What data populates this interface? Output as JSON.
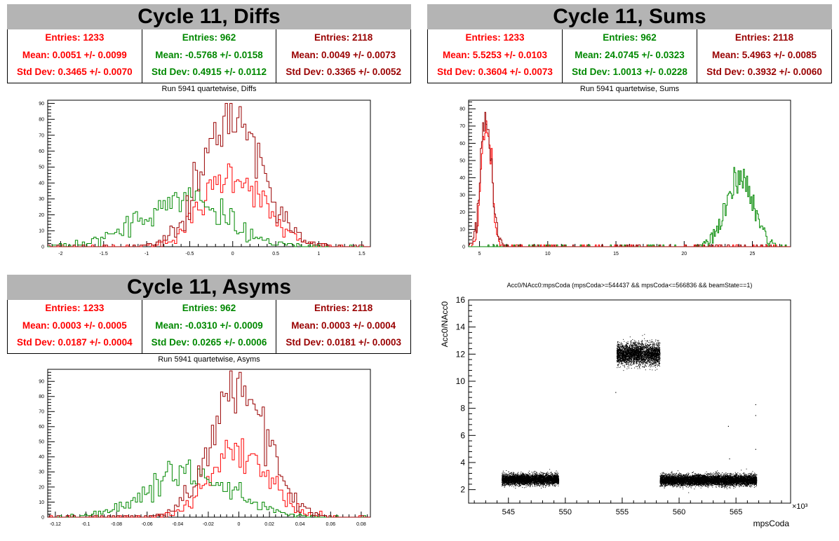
{
  "colors": {
    "red": "#ff0000",
    "green": "#008800",
    "darkred": "#990000",
    "title_bg": "#b4b4b4"
  },
  "panels": {
    "diffs": {
      "title": "Cycle 11, Diffs",
      "subtitle": "Run 5941 quartetwise, Diffs",
      "stats": [
        {
          "entries": "Entries: 1233",
          "mean": "Mean: 0.0051 +/- 0.0099",
          "std": "Std Dev: 0.3465 +/- 0.0070"
        },
        {
          "entries": "Entries: 962",
          "mean": "Mean: -0.5768 +/- 0.0158",
          "std": "Std Dev: 0.4915 +/- 0.0112"
        },
        {
          "entries": "Entries: 2118",
          "mean": "Mean: 0.0049 +/- 0.0073",
          "std": "Std Dev: 0.3365 +/- 0.0052"
        }
      ]
    },
    "sums": {
      "title": "Cycle 11, Sums",
      "subtitle": "Run 5941 quartetwise, Sums",
      "stats": [
        {
          "entries": "Entries: 1233",
          "mean": "Mean: 5.5253 +/- 0.0103",
          "std": "Std Dev: 0.3604 +/- 0.0073"
        },
        {
          "entries": "Entries: 962",
          "mean": "Mean: 24.0745 +/- 0.0323",
          "std": "Std Dev: 1.0013 +/- 0.0228"
        },
        {
          "entries": "Entries: 2118",
          "mean": "Mean: 5.4963 +/- 0.0085",
          "std": "Std Dev: 0.3932 +/- 0.0060"
        }
      ]
    },
    "asyms": {
      "title": "Cycle 11, Asyms",
      "subtitle": "Run 5941 quartetwise, Asyms",
      "stats": [
        {
          "entries": "Entries: 1233",
          "mean": "Mean: 0.0003 +/- 0.0005",
          "std": "Std Dev: 0.0187 +/- 0.0004"
        },
        {
          "entries": "Entries: 962",
          "mean": "Mean: -0.0310 +/- 0.0009",
          "std": "Std Dev: 0.0265 +/- 0.0006"
        },
        {
          "entries": "Entries: 2118",
          "mean": "Mean: 0.0003 +/- 0.0004",
          "std": "Std Dev: 0.0181 +/- 0.0003"
        }
      ]
    },
    "scatter": {
      "title": "Acc0/NAcc0:mpsCoda (mpsCoda>=544437 && mpsCoda<=566836 && beamState==1)"
    }
  },
  "chart_data": [
    {
      "type": "histogram",
      "title": "Run 5941 quartetwise, Diffs",
      "xlim": [
        -2.15,
        1.6
      ],
      "ylim": [
        0,
        92
      ],
      "xticks": [
        -2,
        -1.5,
        -1,
        -0.5,
        0,
        0.5,
        1,
        1.5
      ],
      "yticks": [
        0,
        10,
        20,
        30,
        40,
        50,
        60,
        70,
        80,
        90
      ],
      "series": [
        {
          "color": "red",
          "gaussian": {
            "entries": 1233,
            "mean": 0.0051,
            "std": 0.3465,
            "peak": 46
          }
        },
        {
          "color": "green",
          "gaussian": {
            "entries": 962,
            "mean": -0.5768,
            "std": 0.4915,
            "peak": 30
          }
        },
        {
          "color": "darkred",
          "gaussian": {
            "entries": 2118,
            "mean": 0.0049,
            "std": 0.3365,
            "peak": 82
          }
        }
      ]
    },
    {
      "type": "histogram",
      "title": "Run 5941 quartetwise, Sums",
      "xlim": [
        4.2,
        27.8
      ],
      "ylim": [
        0,
        85
      ],
      "xticks": [
        5,
        10,
        15,
        20,
        25
      ],
      "yticks": [
        0,
        10,
        20,
        30,
        40,
        50,
        60,
        70,
        80
      ],
      "series": [
        {
          "color": "red",
          "gaussian": {
            "entries": 1233,
            "mean": 5.5253,
            "std": 0.3604,
            "peak": 75
          }
        },
        {
          "color": "green",
          "gaussian": {
            "entries": 962,
            "mean": 24.0745,
            "std": 1.0013,
            "peak": 40
          }
        },
        {
          "color": "darkred",
          "gaussian": {
            "entries": 2118,
            "mean": 5.4963,
            "std": 0.3932,
            "peak": 80
          }
        }
      ]
    },
    {
      "type": "histogram",
      "title": "Run 5941 quartetwise, Asyms",
      "xlim": [
        -0.125,
        0.086
      ],
      "ylim": [
        0,
        98
      ],
      "xticks": [
        -0.12,
        -0.1,
        -0.08,
        -0.06,
        -0.04,
        -0.02,
        0,
        0.02,
        0.04,
        0.06,
        0.08
      ],
      "yticks": [
        0,
        10,
        20,
        30,
        40,
        50,
        60,
        70,
        80,
        90
      ],
      "series": [
        {
          "color": "red",
          "gaussian": {
            "entries": 1233,
            "mean": 0.0003,
            "std": 0.0187,
            "peak": 45
          }
        },
        {
          "color": "green",
          "gaussian": {
            "entries": 962,
            "mean": -0.031,
            "std": 0.0265,
            "peak": 30
          }
        },
        {
          "color": "darkred",
          "gaussian": {
            "entries": 2118,
            "mean": 0.0003,
            "std": 0.0181,
            "peak": 88
          }
        }
      ]
    },
    {
      "type": "scatter",
      "title": "Acc0/NAcc0:mpsCoda (mpsCoda>=544437 && mpsCoda<=566836 && beamState==1)",
      "xlabel": "mpsCoda",
      "ylabel": "Acc0/NAcc0",
      "x_multiplier": "×10³",
      "xlim": [
        541.5,
        569.8
      ],
      "ylim": [
        1,
        16
      ],
      "xticks": [
        545,
        550,
        555,
        560,
        565
      ],
      "yticks": [
        2,
        4,
        6,
        8,
        10,
        12,
        14,
        16
      ],
      "clusters": [
        {
          "x": [
            544.4,
            549.4
          ],
          "y_center": 2.75,
          "y_spread": 0.35
        },
        {
          "x": [
            554.5,
            558.3
          ],
          "y_center": 12.0,
          "y_spread": 0.7
        },
        {
          "x": [
            558.3,
            566.8
          ],
          "y_center": 2.7,
          "y_spread": 0.35
        }
      ],
      "outliers": [
        [
          566.7,
          8.3
        ],
        [
          566.7,
          7.5
        ],
        [
          566.7,
          5.0
        ],
        [
          564.3,
          6.7
        ],
        [
          564.4,
          4.3
        ],
        [
          554.4,
          9.2
        ]
      ]
    }
  ]
}
